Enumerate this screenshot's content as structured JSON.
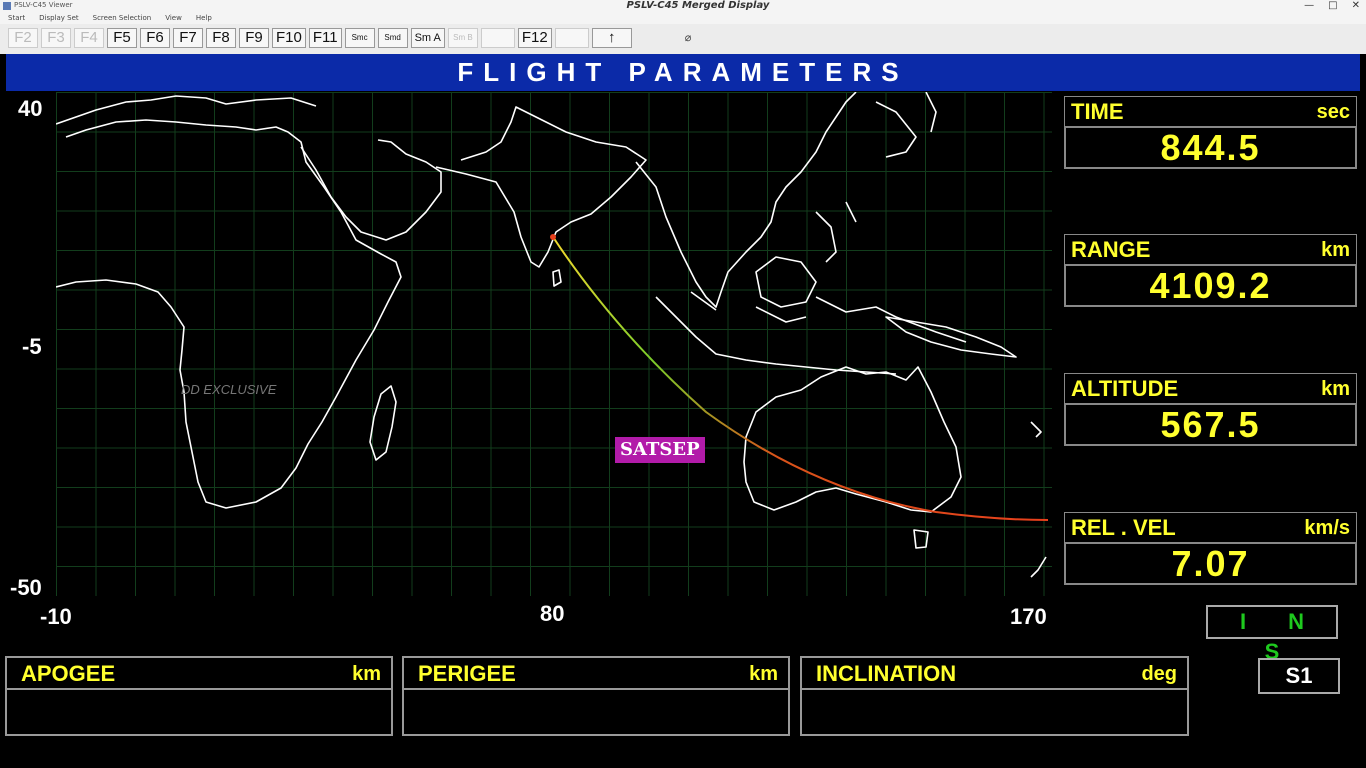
{
  "window": {
    "app_title": "PSLV-C45 Viewer",
    "center_title": "PSLV-C45 Merged Display",
    "buttons": [
      "—",
      "□",
      "✕"
    ]
  },
  "menu": [
    "Start",
    "Display Set",
    "Screen Selection",
    "View",
    "Help"
  ],
  "toolbar": {
    "buttons": [
      {
        "label": "F2",
        "enabled": false
      },
      {
        "label": "F3",
        "enabled": false
      },
      {
        "label": "F4",
        "enabled": false
      },
      {
        "label": "F5",
        "enabled": true
      },
      {
        "label": "F6",
        "enabled": true
      },
      {
        "label": "F7",
        "enabled": true
      },
      {
        "label": "F8",
        "enabled": true
      },
      {
        "label": "F9",
        "enabled": true
      },
      {
        "label": "F10",
        "enabled": true
      },
      {
        "label": "F11",
        "enabled": true
      },
      {
        "label": "Smc",
        "enabled": true
      },
      {
        "label": "Smd",
        "enabled": true
      },
      {
        "label": "Sm A",
        "enabled": true
      },
      {
        "label": "Sm B",
        "enabled": false
      },
      {
        "label": "",
        "enabled": false
      },
      {
        "label": "F12",
        "enabled": true
      },
      {
        "label": "",
        "enabled": false
      },
      {
        "label": "↑",
        "enabled": true
      }
    ]
  },
  "header": {
    "title": "FLIGHT PARAMETERS"
  },
  "map": {
    "lat_labels": [
      "40",
      "-5",
      "-50"
    ],
    "lon_labels": [
      "-10",
      "80",
      "170"
    ],
    "event_label": "SATSEP",
    "watermark": "DD EXCLUSIVE",
    "colors": {
      "coast": "#ffffff",
      "grid": "#123d1c",
      "trajectory_start": "#f2d92e",
      "trajectory_mid": "#7bcc2a",
      "trajectory_end": "#e8401c"
    }
  },
  "parameters": [
    {
      "label": "TIME",
      "unit": "sec",
      "value": "844.5"
    },
    {
      "label": "RANGE",
      "unit": "km",
      "value": "4109.2"
    },
    {
      "label": "ALTITUDE",
      "unit": "km",
      "value": "567.5"
    },
    {
      "label": "REL . VEL",
      "unit": "km/s",
      "value": "7.07"
    }
  ],
  "nav_mode": "I N S",
  "stage": "S1",
  "orbit": [
    {
      "label": "APOGEE",
      "unit": "km",
      "value": ""
    },
    {
      "label": "PERIGEE",
      "unit": "km",
      "value": ""
    },
    {
      "label": "INCLINATION",
      "unit": "deg",
      "value": ""
    }
  ]
}
